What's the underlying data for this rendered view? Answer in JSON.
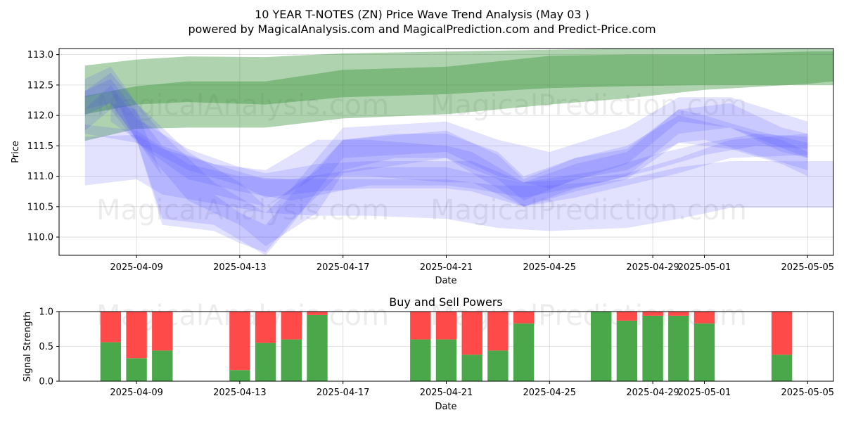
{
  "title": "10 YEAR T-NOTES (ZN) Price Wave Trend Analysis (May 03 )",
  "subtitle": "powered by MagicalAnalysis.com and MagicalPrediction.com and Predict-Price.com",
  "watermarks": [
    "MagicalAnalysis.com",
    "MagicalPrediction.com"
  ],
  "colors": {
    "green_band": "#2e8b2e",
    "blue_band": "#4d4dff",
    "buy": "#4aa84a",
    "sell": "#ff4a4a",
    "grid": "#b0b0b0"
  },
  "chart_data": [
    {
      "type": "area",
      "title": "",
      "xlabel": "Date",
      "ylabel": "Price",
      "ylim": [
        109.7,
        113.1
      ],
      "xlim": [
        "2025-04-06",
        "2025-05-06"
      ],
      "grid": true,
      "x_ticks": [
        "2025-04-09",
        "2025-04-13",
        "2025-04-17",
        "2025-04-21",
        "2025-04-25",
        "2025-04-29",
        "2025-05-01",
        "2025-05-05"
      ],
      "y_ticks": [
        110.0,
        110.5,
        111.0,
        111.5,
        112.0,
        112.5,
        113.0
      ],
      "series": [
        {
          "color": "green",
          "kind": "upper-band",
          "x": [
            "2025-04-07",
            "2025-04-09",
            "2025-04-11",
            "2025-04-14",
            "2025-04-17",
            "2025-04-21",
            "2025-04-25",
            "2025-04-28",
            "2025-05-01",
            "2025-05-05",
            "2025-05-06"
          ],
          "upper": [
            112.82,
            112.92,
            112.97,
            112.96,
            113.02,
            113.05,
            113.08,
            113.1,
            113.1,
            113.1,
            113.1
          ],
          "lower": [
            112.02,
            112.18,
            112.22,
            112.18,
            112.3,
            112.35,
            112.45,
            112.48,
            112.5,
            112.5,
            112.5
          ]
        },
        {
          "color": "green",
          "kind": "lower-band",
          "x": [
            "2025-04-07",
            "2025-04-09",
            "2025-04-11",
            "2025-04-14",
            "2025-04-17",
            "2025-04-21",
            "2025-04-25",
            "2025-04-28",
            "2025-05-01",
            "2025-05-05",
            "2025-05-06"
          ],
          "upper": [
            112.32,
            112.48,
            112.56,
            112.56,
            112.75,
            112.8,
            112.98,
            113.0,
            113.0,
            113.05,
            113.05
          ],
          "lower": [
            111.58,
            111.78,
            111.8,
            111.8,
            111.95,
            112.02,
            112.18,
            112.28,
            112.42,
            112.52,
            112.56
          ]
        },
        {
          "color": "blue",
          "kind": "wave",
          "x": [
            "2025-04-07",
            "2025-04-09",
            "2025-04-10",
            "2025-04-12",
            "2025-04-14",
            "2025-04-16",
            "2025-04-18",
            "2025-04-21",
            "2025-04-23",
            "2025-04-25",
            "2025-04-28",
            "2025-04-30",
            "2025-05-02",
            "2025-05-05",
            "2025-05-06"
          ],
          "upper": [
            111.65,
            111.68,
            111.45,
            111.2,
            110.95,
            110.95,
            110.95,
            110.95,
            110.85,
            110.85,
            110.95,
            111.15,
            111.25,
            111.25,
            111.25
          ],
          "lower": [
            110.85,
            110.95,
            110.7,
            110.55,
            110.4,
            110.35,
            110.35,
            110.3,
            110.15,
            110.1,
            110.15,
            110.3,
            110.48,
            110.48,
            110.48
          ]
        },
        {
          "color": "blue",
          "kind": "wave",
          "x": [
            "2025-04-07",
            "2025-04-08",
            "2025-04-09",
            "2025-04-11",
            "2025-04-13",
            "2025-04-14",
            "2025-04-16",
            "2025-04-18",
            "2025-04-21",
            "2025-04-22",
            "2025-04-24",
            "2025-04-26",
            "2025-04-28",
            "2025-04-30",
            "2025-05-02",
            "2025-05-05"
          ],
          "upper": [
            112.1,
            112.5,
            111.95,
            111.45,
            111.15,
            111.05,
            111.2,
            111.25,
            111.25,
            111.25,
            110.9,
            110.95,
            111.05,
            111.3,
            111.6,
            111.7
          ],
          "lower": [
            111.75,
            112.1,
            111.55,
            111.1,
            110.85,
            110.65,
            110.75,
            110.8,
            110.8,
            110.75,
            110.5,
            110.65,
            110.85,
            111.05,
            111.3,
            111.35
          ]
        },
        {
          "color": "blue",
          "kind": "wave",
          "x": [
            "2025-04-07",
            "2025-04-08",
            "2025-04-09",
            "2025-04-10",
            "2025-04-12",
            "2025-04-14",
            "2025-04-15",
            "2025-04-17",
            "2025-04-21",
            "2025-04-23",
            "2025-04-25",
            "2025-04-28",
            "2025-04-30",
            "2025-05-02",
            "2025-05-05"
          ],
          "upper": [
            112.6,
            112.8,
            112.2,
            111.7,
            110.9,
            110.4,
            110.8,
            111.8,
            111.9,
            111.6,
            111.4,
            111.8,
            112.3,
            112.3,
            111.9
          ],
          "lower": [
            112.3,
            112.4,
            111.6,
            110.3,
            110.2,
            109.7,
            110.2,
            111.3,
            111.4,
            111.0,
            110.8,
            111.2,
            111.9,
            111.8,
            111.3
          ]
        },
        {
          "color": "blue",
          "kind": "wave",
          "x": [
            "2025-04-07",
            "2025-04-08",
            "2025-04-10",
            "2025-04-12",
            "2025-04-14",
            "2025-04-16",
            "2025-04-18",
            "2025-04-21",
            "2025-04-22",
            "2025-04-24",
            "2025-04-26",
            "2025-04-28",
            "2025-04-30",
            "2025-05-02",
            "2025-05-04",
            "2025-05-05"
          ],
          "upper": [
            112.4,
            112.6,
            111.5,
            111.2,
            111.1,
            111.6,
            111.6,
            111.5,
            111.4,
            110.9,
            111.2,
            111.4,
            112.1,
            112.2,
            111.8,
            111.7
          ],
          "lower": [
            112.1,
            112.2,
            111.0,
            110.7,
            110.5,
            111.0,
            111.0,
            110.9,
            110.9,
            110.5,
            110.8,
            111.0,
            111.7,
            111.8,
            111.4,
            111.3
          ]
        },
        {
          "color": "blue",
          "kind": "wave",
          "x": [
            "2025-04-07",
            "2025-04-09",
            "2025-04-11",
            "2025-04-13",
            "2025-04-15",
            "2025-04-18",
            "2025-04-21",
            "2025-04-22",
            "2025-04-24",
            "2025-04-27",
            "2025-04-29",
            "2025-05-01",
            "2025-05-03",
            "2025-05-05"
          ],
          "upper": [
            111.85,
            111.75,
            111.2,
            111.0,
            110.95,
            111.15,
            111.15,
            111.05,
            110.9,
            111.1,
            111.35,
            111.55,
            111.7,
            111.65
          ],
          "lower": [
            111.7,
            111.55,
            110.95,
            110.75,
            110.6,
            110.85,
            110.85,
            110.8,
            110.65,
            110.9,
            111.1,
            111.35,
            111.5,
            111.45
          ]
        },
        {
          "color": "blue",
          "kind": "wave",
          "x": [
            "2025-04-07",
            "2025-04-08",
            "2025-04-09",
            "2025-04-11",
            "2025-04-13",
            "2025-04-14",
            "2025-04-16",
            "2025-04-17",
            "2025-04-21",
            "2025-04-23",
            "2025-04-24",
            "2025-04-26",
            "2025-04-28",
            "2025-04-30",
            "2025-05-01",
            "2025-05-03",
            "2025-05-05"
          ],
          "upper": [
            112.4,
            112.7,
            112.2,
            111.4,
            110.9,
            110.5,
            111.1,
            111.6,
            111.75,
            111.35,
            110.95,
            111.3,
            111.45,
            112.1,
            112.0,
            111.75,
            111.55
          ],
          "lower": [
            112.0,
            112.2,
            111.6,
            110.6,
            110.2,
            109.85,
            110.4,
            111.05,
            111.3,
            110.8,
            110.5,
            110.75,
            110.95,
            111.55,
            111.6,
            111.35,
            111.1
          ]
        },
        {
          "color": "blue",
          "kind": "wave",
          "x": [
            "2025-04-08",
            "2025-04-09",
            "2025-04-10",
            "2025-04-12",
            "2025-04-13",
            "2025-04-14",
            "2025-04-15",
            "2025-04-17",
            "2025-04-19",
            "2025-04-21",
            "2025-04-23",
            "2025-04-24",
            "2025-04-26",
            "2025-04-28",
            "2025-04-30",
            "2025-05-02",
            "2025-05-04",
            "2025-05-05"
          ],
          "upper": [
            112.2,
            112.1,
            111.0,
            110.7,
            110.4,
            110.2,
            110.7,
            111.6,
            111.7,
            111.7,
            111.4,
            111.0,
            111.3,
            111.5,
            112.0,
            111.8,
            111.6,
            111.4
          ],
          "lower": [
            111.9,
            111.6,
            110.2,
            110.1,
            109.9,
            109.75,
            110.25,
            111.1,
            111.3,
            111.3,
            110.95,
            110.6,
            110.95,
            111.1,
            111.55,
            111.45,
            111.2,
            111.0
          ]
        }
      ]
    },
    {
      "type": "bar",
      "title": "Buy and Sell Powers",
      "xlabel": "Date",
      "ylabel": "Signal Strength",
      "ylim": [
        0.0,
        1.0
      ],
      "xlim": [
        "2025-04-06",
        "2025-05-06"
      ],
      "grid": true,
      "x_ticks": [
        "2025-04-09",
        "2025-04-13",
        "2025-04-17",
        "2025-04-21",
        "2025-04-25",
        "2025-04-29",
        "2025-05-01",
        "2025-05-05"
      ],
      "y_ticks": [
        "0.0",
        "0.5",
        "1.0"
      ],
      "dates": [
        "2025-04-08",
        "2025-04-09",
        "2025-04-10",
        "2025-04-13",
        "2025-04-14",
        "2025-04-15",
        "2025-04-16",
        "2025-04-20",
        "2025-04-21",
        "2025-04-22",
        "2025-04-23",
        "2025-04-24",
        "2025-04-27",
        "2025-04-28",
        "2025-04-29",
        "2025-04-30",
        "2025-05-01",
        "2025-05-04"
      ],
      "series": [
        {
          "name": "Buy",
          "values": [
            0.56,
            0.33,
            0.44,
            0.16,
            0.55,
            0.6,
            0.95,
            0.6,
            0.6,
            0.38,
            0.44,
            0.83,
            1.0,
            0.87,
            0.94,
            0.94,
            0.83,
            0.38
          ]
        },
        {
          "name": "Sell",
          "values": [
            0.44,
            0.67,
            0.56,
            0.84,
            0.45,
            0.4,
            0.05,
            0.4,
            0.4,
            0.62,
            0.56,
            0.17,
            0.0,
            0.13,
            0.06,
            0.06,
            0.17,
            0.62
          ]
        }
      ]
    }
  ]
}
